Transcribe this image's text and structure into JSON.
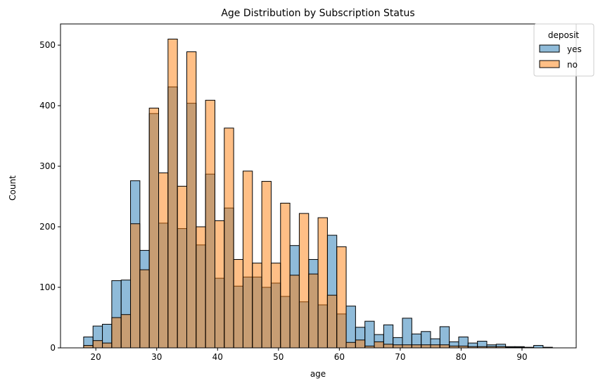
{
  "chart_data": {
    "type": "bar",
    "title": "Age Distribution by Subscription Status",
    "xlabel": "age",
    "ylabel": "Count",
    "xlim": [
      14.2,
      98.9
    ],
    "ylim": [
      0,
      535
    ],
    "xticks": [
      20,
      30,
      40,
      50,
      60,
      70,
      80,
      90
    ],
    "yticks": [
      0,
      100,
      200,
      300,
      400,
      500
    ],
    "bin_start": 18,
    "bin_width": 1.54,
    "legend": {
      "title": "deposit",
      "placement": "top-right"
    },
    "series": [
      {
        "name": "yes",
        "color": "#1f77b4",
        "values": [
          18,
          36,
          39,
          111,
          112,
          276,
          161,
          387,
          206,
          431,
          197,
          404,
          170,
          287,
          115,
          231,
          102,
          117,
          117,
          100,
          107,
          85,
          169,
          76,
          146,
          71,
          186,
          56,
          69,
          34,
          44,
          22,
          38,
          17,
          49,
          23,
          27,
          15,
          35,
          10,
          18,
          8,
          11,
          5,
          6,
          2,
          2,
          1,
          4,
          1
        ]
      },
      {
        "name": "no",
        "color": "#ff7f0e",
        "values": [
          4,
          12,
          8,
          50,
          55,
          205,
          129,
          396,
          289,
          510,
          267,
          489,
          200,
          409,
          210,
          363,
          146,
          292,
          140,
          275,
          140,
          239,
          120,
          222,
          122,
          215,
          87,
          167,
          9,
          13,
          3,
          10,
          6,
          5,
          5,
          5,
          5,
          5,
          5,
          3,
          3,
          2,
          2,
          2,
          2,
          1,
          1,
          0,
          0,
          0
        ]
      }
    ]
  }
}
